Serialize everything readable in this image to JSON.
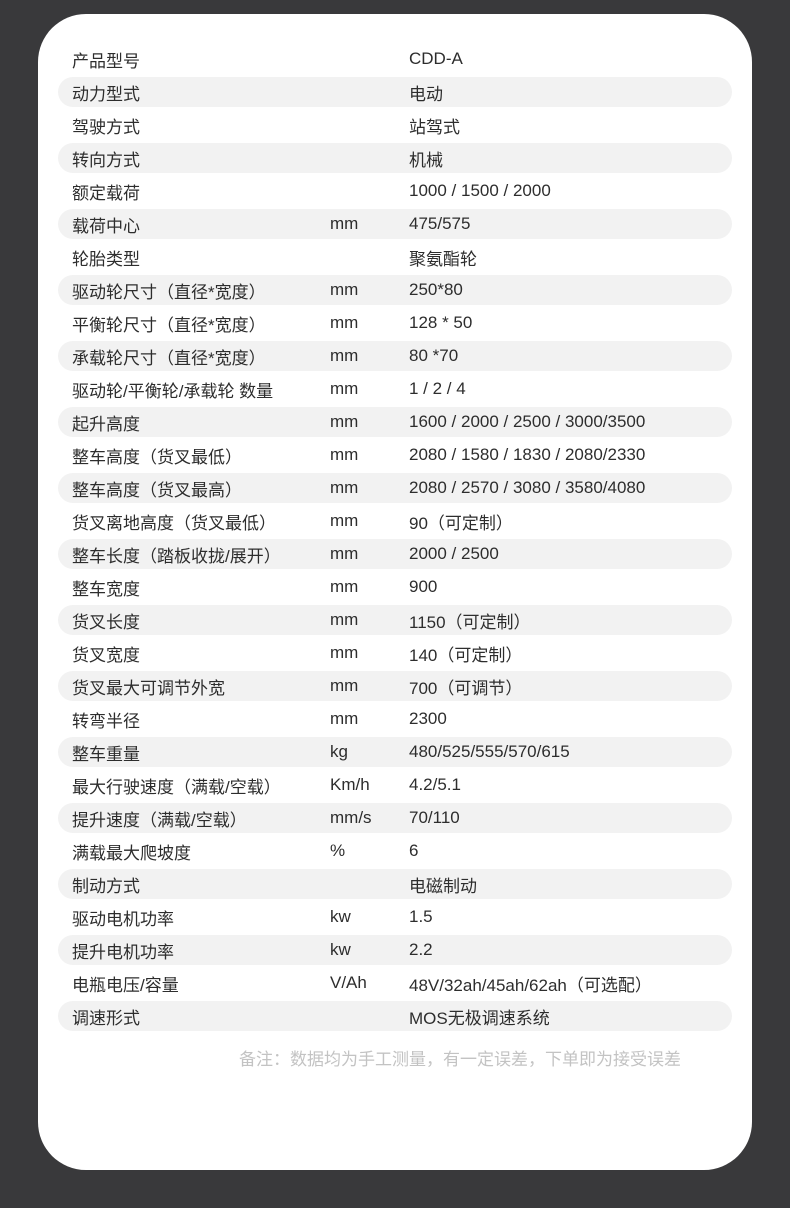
{
  "theme": {
    "page_background": "#39393b",
    "card_background": "#ffffff",
    "stripe_color": "#f2f2f2",
    "text_color": "#2d2d2d",
    "note_color": "#c3c3c3"
  },
  "spec_table": {
    "columns": [
      "parameter",
      "unit",
      "value"
    ],
    "rows": [
      {
        "label": "产品型号",
        "unit": "",
        "value": "CDD-A"
      },
      {
        "label": "动力型式",
        "unit": "",
        "value": "电动"
      },
      {
        "label": "驾驶方式",
        "unit": "",
        "value": "站驾式"
      },
      {
        "label": "转向方式",
        "unit": "",
        "value": "机械"
      },
      {
        "label": "额定载荷",
        "unit": "",
        "value": "1000 / 1500 / 2000"
      },
      {
        "label": "载荷中心",
        "unit": "mm",
        "value": "475/575"
      },
      {
        "label": "轮胎类型",
        "unit": "",
        "value": "聚氨酯轮"
      },
      {
        "label": "驱动轮尺寸（直径*宽度）",
        "unit": "mm",
        "value": "250*80"
      },
      {
        "label": "平衡轮尺寸（直径*宽度）",
        "unit": "mm",
        "value": "128 * 50"
      },
      {
        "label": "承载轮尺寸（直径*宽度）",
        "unit": "mm",
        "value": "80 *70"
      },
      {
        "label": "驱动轮/平衡轮/承载轮 数量",
        "unit": "mm",
        "value": "1 / 2 / 4"
      },
      {
        "label": "起升高度",
        "unit": "mm",
        "value": "1600 / 2000 / 2500 / 3000/3500"
      },
      {
        "label": "整车高度（货叉最低）",
        "unit": "mm",
        "value": "2080 / 1580 / 1830 / 2080/2330"
      },
      {
        "label": "整车高度（货叉最高）",
        "unit": "mm",
        "value": "2080 / 2570 / 3080 / 3580/4080"
      },
      {
        "label": "货叉离地高度（货叉最低）",
        "unit": "mm",
        "value": "90（可定制）"
      },
      {
        "label": "整车长度（踏板收拢/展开）",
        "unit": "mm",
        "value": "2000 / 2500"
      },
      {
        "label": "整车宽度",
        "unit": "mm",
        "value": "900"
      },
      {
        "label": "货叉长度",
        "unit": "mm",
        "value": "1150（可定制）"
      },
      {
        "label": "货叉宽度",
        "unit": "mm",
        "value": "140（可定制）"
      },
      {
        "label": "货叉最大可调节外宽",
        "unit": "mm",
        "value": "700（可调节）"
      },
      {
        "label": "转弯半径",
        "unit": "mm",
        "value": "2300"
      },
      {
        "label": "整车重量",
        "unit": "kg",
        "value": "480/525/555/570/615"
      },
      {
        "label": "最大行驶速度（满载/空载）",
        "unit": "Km/h",
        "value": "4.2/5.1"
      },
      {
        "label": "提升速度（满载/空载）",
        "unit": "mm/s",
        "value": "70/110"
      },
      {
        "label": "满载最大爬坡度",
        "unit": "%",
        "value": "6"
      },
      {
        "label": "制动方式",
        "unit": "",
        "value": "电磁制动"
      },
      {
        "label": "驱动电机功率",
        "unit": "kw",
        "value": "1.5"
      },
      {
        "label": "提升电机功率",
        "unit": "kw",
        "value": "2.2"
      },
      {
        "label": "电瓶电压/容量",
        "unit": "V/Ah",
        "value": "48V/32ah/45ah/62ah（可选配）"
      },
      {
        "label": "调速形式",
        "unit": "",
        "value": "MOS无极调速系统"
      }
    ]
  },
  "note": {
    "text": "备注：数据均为手工测量，有一定误差，下单即为接受误差"
  }
}
